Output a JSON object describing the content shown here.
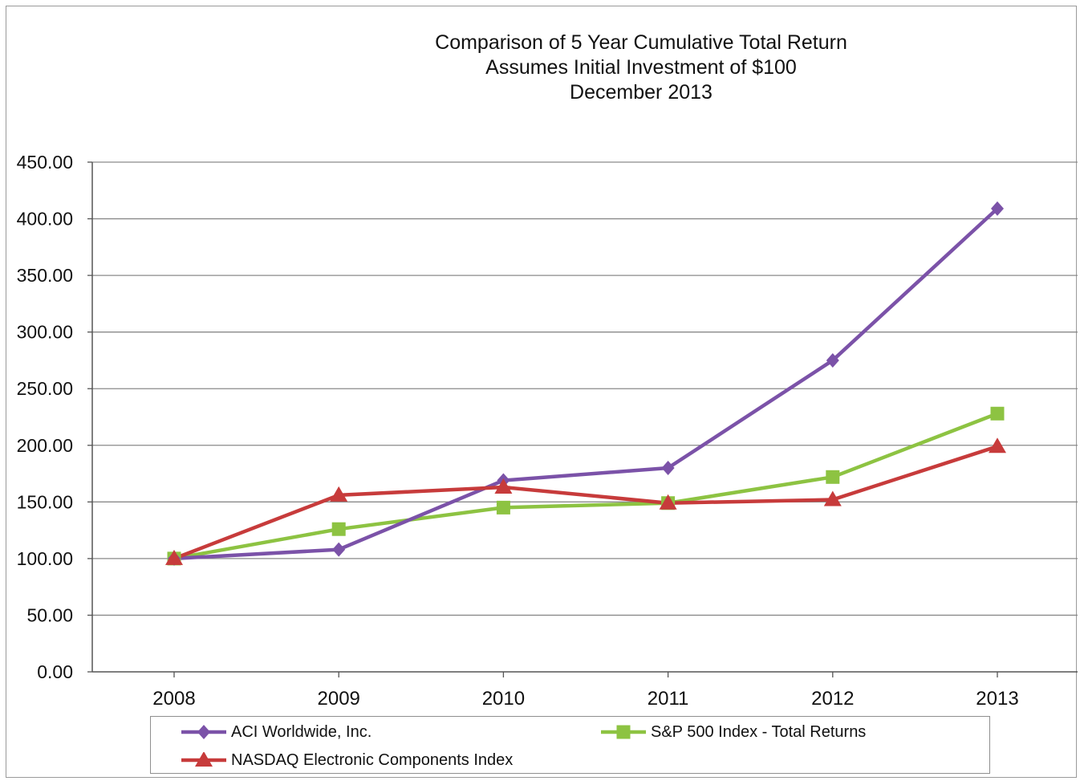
{
  "chart_data": {
    "type": "line",
    "title": [
      "Comparison of 5 Year Cumulative Total Return",
      "Assumes Initial Investment of $100",
      "December 2013"
    ],
    "categories": [
      "2008",
      "2009",
      "2010",
      "2011",
      "2012",
      "2013"
    ],
    "ylim": [
      0,
      450
    ],
    "yticks": [
      "0.00",
      "50.00",
      "100.00",
      "150.00",
      "200.00",
      "250.00",
      "300.00",
      "350.00",
      "400.00",
      "450.00"
    ],
    "grid": true,
    "legend_position": "bottom",
    "series": [
      {
        "name": "ACI Worldwide, Inc.",
        "color": "#7b52a8",
        "marker": "diamond",
        "values": [
          100,
          108,
          169,
          180,
          275,
          409
        ]
      },
      {
        "name": "S&P 500 Index - Total Returns",
        "color": "#8dc342",
        "marker": "square",
        "values": [
          100,
          126,
          145,
          149,
          172,
          228
        ]
      },
      {
        "name": "NASDAQ Electronic Components Index",
        "color": "#c73b3b",
        "marker": "triangle",
        "values": [
          100,
          156,
          163,
          149,
          152,
          199
        ]
      }
    ]
  }
}
